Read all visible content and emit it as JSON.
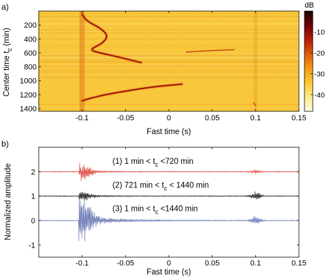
{
  "chart_data": [
    {
      "type": "heatmap",
      "panel_label": "a)",
      "xlabel": "Fast time (s)",
      "ylabel": "Center time t",
      "ylabel_sub": "c",
      "ylabel_unit": "(min)",
      "xlim": [
        -0.15,
        0.15
      ],
      "ylim": [
        1440,
        0
      ],
      "xticks": [
        -0.1,
        -0.05,
        0,
        0.05,
        0.1,
        0.15
      ],
      "xtick_labels": [
        "-0.1",
        "-0.05",
        "0",
        "0.05",
        "0.1",
        "0.15"
      ],
      "yticks": [
        200,
        400,
        600,
        800,
        1000,
        1200,
        1400
      ],
      "ytick_labels": [
        "200",
        "400",
        "600",
        "800",
        "1000",
        "1200",
        "1400"
      ],
      "colorbar": {
        "label": "dB",
        "range": [
          -48,
          0
        ],
        "ticks": [
          -10,
          -20,
          -30,
          -40
        ],
        "tick_labels": [
          "-10",
          "-20",
          "-30",
          "-40"
        ],
        "colors": [
          "#fffbe0",
          "#ffe98a",
          "#fdc92c",
          "#f59a12",
          "#e05a0a",
          "#b81c06",
          "#6e0404",
          "#1a0000"
        ]
      },
      "background_color": "#f9c93a",
      "features": [
        {
          "name": "arrival-1",
          "points": [
            [
              -0.1,
              50
            ],
            [
              -0.094,
              150
            ],
            [
              -0.078,
              250
            ],
            [
              -0.07,
              360
            ],
            [
              -0.077,
              470
            ],
            [
              -0.092,
              555
            ],
            [
              -0.08,
              600
            ],
            [
              -0.058,
              660
            ],
            [
              -0.032,
              740
            ]
          ]
        },
        {
          "name": "arrival-2",
          "points": [
            [
              -0.1,
              1290
            ],
            [
              -0.09,
              1250
            ],
            [
              -0.073,
              1200
            ],
            [
              -0.05,
              1150
            ],
            [
              -0.02,
              1090
            ],
            [
              0.015,
              1050
            ]
          ]
        },
        {
          "name": "arrival-3",
          "points": [
            [
              0.02,
              590
            ],
            [
              0.045,
              570
            ],
            [
              0.075,
              555
            ]
          ]
        },
        {
          "name": "arrival-4",
          "points": [
            [
              0.098,
              1320
            ],
            [
              0.1,
              1360
            ]
          ]
        }
      ]
    },
    {
      "type": "line",
      "panel_label": "b)",
      "xlabel": "Fast time (s)",
      "ylabel": "Normalized amplitude",
      "xlim": [
        -0.15,
        0.15
      ],
      "ylim": [
        -1.5,
        3.0
      ],
      "xticks": [
        -0.1,
        -0.05,
        0,
        0.05,
        0.1,
        0.15
      ],
      "xtick_labels": [
        "-0.1",
        "-0.05",
        "0",
        "0.05",
        "0.1",
        "0.15"
      ],
      "yticks": [
        -1,
        0,
        1,
        2
      ],
      "ytick_labels": [
        "-1",
        "0",
        "1",
        "2"
      ],
      "series": [
        {
          "label_main": "(1)  1 min < t",
          "label_sub": "c",
          "label_tail": " <720 min",
          "offset": 2,
          "color": "#e0534a",
          "peak_amplitude": 0.35,
          "late_amplitude": 0.08
        },
        {
          "label_main": "(2) 721 min < t",
          "label_sub": "c",
          "label_tail": " < 1440 min",
          "offset": 1,
          "color": "#2a2a2a",
          "peak_amplitude": 0.15,
          "late_amplitude": 0.18
        },
        {
          "label_main": "(3)  1 min < t",
          "label_sub": "c",
          "label_tail": " <1440 min",
          "offset": 0,
          "color": "#6f7fb8",
          "peak_amplitude": 0.9,
          "late_amplitude": 0.2
        }
      ]
    }
  ]
}
